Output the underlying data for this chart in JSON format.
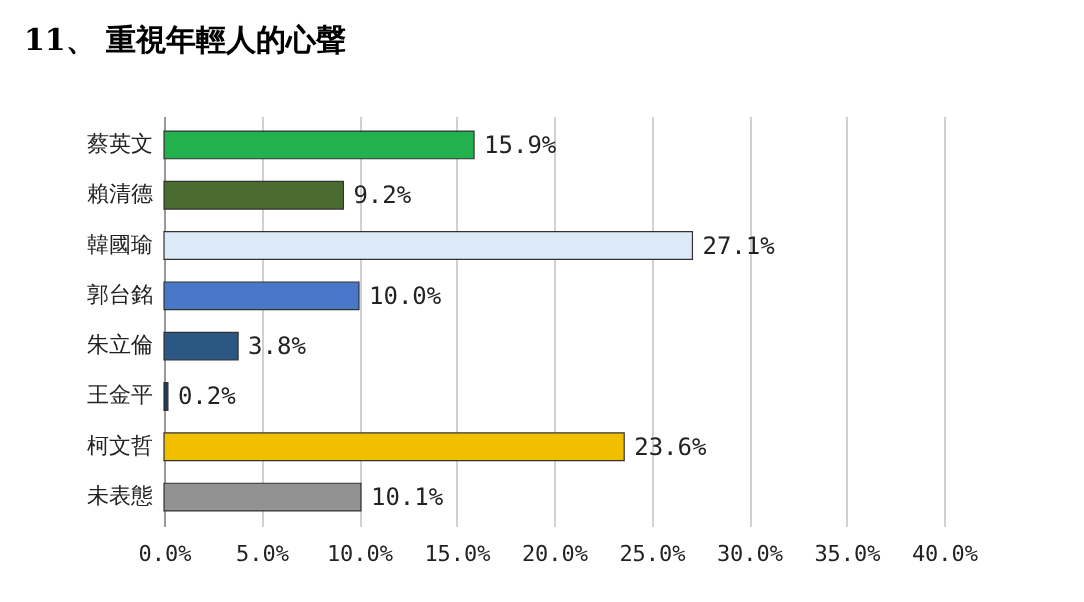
{
  "chart_data": {
    "type": "bar",
    "orientation": "horizontal",
    "title": "11、 重視年輕人的心聲",
    "categories": [
      "蔡英文",
      "賴清德",
      "韓國瑜",
      "郭台銘",
      "朱立倫",
      "王金平",
      "柯文哲",
      "未表態"
    ],
    "values": [
      15.9,
      9.2,
      27.1,
      10.0,
      3.8,
      0.2,
      23.6,
      10.1
    ],
    "colors": [
      "#22b14c",
      "#4a6b2e",
      "#dce9f7",
      "#4a78c8",
      "#2a5783",
      "#1f3b5a",
      "#f0c000",
      "#929292"
    ],
    "value_labels": [
      "15.9%",
      "9.2%",
      "27.1%",
      "10.0%",
      "3.8%",
      "0.2%",
      "23.6%",
      "10.1%"
    ],
    "xlim": [
      0,
      40
    ],
    "xticks": [
      {
        "value": 0,
        "label": "0.0%"
      },
      {
        "value": 5,
        "label": "5.0%"
      },
      {
        "value": 10,
        "label": "10.0%"
      },
      {
        "value": 15,
        "label": "15.0%"
      },
      {
        "value": 20,
        "label": "20.0%"
      },
      {
        "value": 25,
        "label": "25.0%"
      },
      {
        "value": 30,
        "label": "30.0%"
      },
      {
        "value": 35,
        "label": "35.0%"
      },
      {
        "value": 40,
        "label": "40.0%"
      }
    ],
    "grid": "x"
  }
}
